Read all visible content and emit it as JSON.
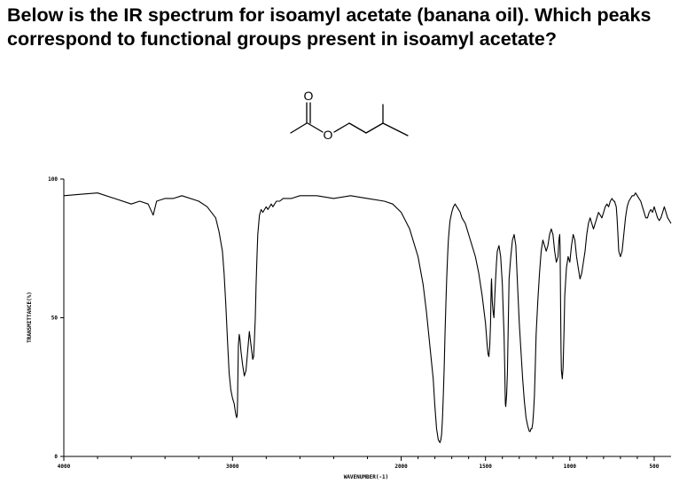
{
  "question": "Below is the IR spectrum for isoamyl acetate (banana oil). Which peaks correspond to functional groups present in isoamyl acetate?",
  "molecule": {
    "oxygen_label": "O",
    "ester_oxygen_label": "O"
  },
  "chart_data": {
    "type": "line",
    "title": "",
    "xlabel": "WAVENUMBER(-1)",
    "ylabel": "TRANSMITTANCE(%)",
    "xlim": [
      4000,
      400
    ],
    "ylim": [
      0,
      100
    ],
    "x_ticks": [
      4000,
      3000,
      2000,
      1500,
      1000,
      500
    ],
    "x_tick_labels": [
      "4000",
      "3000",
      "2000",
      "1500",
      "1000",
      "500"
    ],
    "y_ticks": [
      0,
      50,
      100
    ],
    "y_tick_labels": [
      "0",
      "50",
      "100"
    ],
    "grid": false,
    "series": [
      {
        "name": "",
        "color": "#000000",
        "x": [
          4000,
          3900,
          3800,
          3700,
          3600,
          3550,
          3500,
          3470,
          3450,
          3400,
          3350,
          3300,
          3200,
          3150,
          3100,
          3080,
          3060,
          3050,
          3040,
          3030,
          3020,
          3010,
          3000,
          2990,
          2985,
          2980,
          2975,
          2972,
          2970,
          2968,
          2965,
          2960,
          2955,
          2950,
          2940,
          2930,
          2920,
          2910,
          2900,
          2890,
          2880,
          2875,
          2870,
          2865,
          2860,
          2855,
          2850,
          2840,
          2830,
          2820,
          2810,
          2800,
          2790,
          2780,
          2770,
          2760,
          2740,
          2720,
          2700,
          2650,
          2600,
          2500,
          2400,
          2300,
          2200,
          2100,
          2050,
          2000,
          1950,
          1900,
          1870,
          1850,
          1830,
          1810,
          1800,
          1790,
          1780,
          1770,
          1765,
          1760,
          1755,
          1750,
          1745,
          1740,
          1735,
          1730,
          1725,
          1720,
          1715,
          1710,
          1700,
          1690,
          1680,
          1670,
          1660,
          1650,
          1640,
          1620,
          1600,
          1580,
          1560,
          1540,
          1520,
          1500,
          1490,
          1485,
          1480,
          1475,
          1470,
          1468,
          1466,
          1464,
          1462,
          1460,
          1455,
          1450,
          1445,
          1440,
          1435,
          1430,
          1420,
          1410,
          1400,
          1395,
          1390,
          1388,
          1386,
          1384,
          1382,
          1380,
          1375,
          1370,
          1365,
          1360,
          1350,
          1340,
          1330,
          1320,
          1310,
          1300,
          1290,
          1280,
          1270,
          1260,
          1250,
          1245,
          1240,
          1235,
          1230,
          1225,
          1220,
          1215,
          1210,
          1205,
          1200,
          1190,
          1180,
          1170,
          1160,
          1150,
          1140,
          1130,
          1120,
          1110,
          1100,
          1090,
          1080,
          1070,
          1065,
          1060,
          1058,
          1056,
          1054,
          1052,
          1050,
          1045,
          1040,
          1035,
          1030,
          1020,
          1010,
          1000,
          990,
          980,
          970,
          960,
          950,
          940,
          930,
          920,
          910,
          900,
          890,
          880,
          870,
          860,
          850,
          840,
          830,
          820,
          810,
          800,
          790,
          780,
          770,
          760,
          750,
          740,
          735,
          730,
          725,
          720,
          715,
          710,
          700,
          690,
          680,
          670,
          660,
          650,
          640,
          630,
          620,
          610,
          600,
          590,
          580,
          570,
          560,
          550,
          540,
          530,
          520,
          510,
          500,
          490,
          480,
          470,
          460,
          450,
          440,
          430,
          420,
          410,
          400
        ],
        "y": [
          94,
          94.5,
          95,
          93,
          91,
          92,
          91,
          87,
          92,
          93,
          93,
          94,
          92,
          90,
          86,
          81,
          74,
          66,
          55,
          42,
          30,
          24,
          21,
          19,
          17,
          15,
          14,
          15,
          20,
          30,
          40,
          44,
          42,
          38,
          33,
          29,
          31,
          38,
          45,
          40,
          35,
          36,
          42,
          50,
          62,
          72,
          80,
          87,
          89,
          88,
          89,
          90,
          89,
          90,
          91,
          90,
          92,
          92,
          93,
          93,
          94,
          94,
          93,
          94,
          93,
          92,
          91,
          88,
          82,
          72,
          62,
          52,
          40,
          28,
          18,
          10,
          6,
          5,
          6,
          8,
          14,
          22,
          32,
          44,
          55,
          64,
          72,
          78,
          82,
          85,
          88,
          90,
          91,
          90,
          89,
          88,
          86,
          84,
          80,
          76,
          72,
          66,
          58,
          48,
          40,
          37,
          36,
          40,
          48,
          56,
          62,
          64,
          60,
          56,
          52,
          50,
          58,
          64,
          70,
          74,
          76,
          72,
          62,
          52,
          44,
          38,
          32,
          24,
          19,
          18,
          22,
          30,
          48,
          64,
          72,
          78,
          80,
          76,
          62,
          48,
          38,
          28,
          20,
          14,
          11,
          10,
          9,
          9,
          10,
          10,
          12,
          16,
          22,
          32,
          44,
          56,
          66,
          74,
          78,
          76,
          74,
          76,
          80,
          82,
          80,
          74,
          70,
          72,
          78,
          80,
          76,
          62,
          48,
          38,
          31,
          28,
          32,
          44,
          58,
          68,
          72,
          70,
          76,
          80,
          78,
          72,
          68,
          64,
          66,
          70,
          74,
          80,
          84,
          86,
          84,
          82,
          84,
          86,
          88,
          87,
          86,
          88,
          90,
          91,
          90,
          92,
          93,
          92,
          92,
          91,
          90,
          86,
          80,
          74,
          72,
          74,
          80,
          86,
          90,
          92,
          93,
          94,
          94,
          95,
          94,
          93,
          92,
          90,
          88,
          86,
          86,
          88,
          89,
          88,
          90,
          88,
          86,
          85,
          86,
          88,
          90,
          88,
          86,
          85,
          84
        ]
      }
    ]
  }
}
